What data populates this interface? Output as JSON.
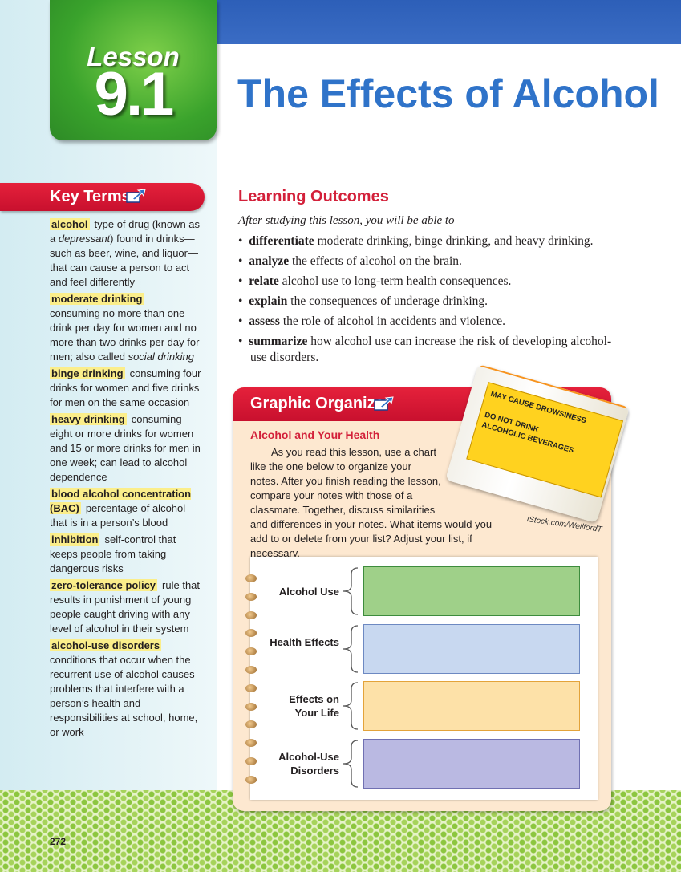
{
  "lesson": {
    "label": "Lesson",
    "number": "9.1"
  },
  "title": "The Effects of Alcohol",
  "key_terms": {
    "heading": "Key Terms",
    "terms": [
      {
        "term": "alcohol",
        "definition": [
          {
            "text": "type of drug (known as a "
          },
          {
            "text": "depressant",
            "italic": true
          },
          {
            "text": ") found in drinks—such as beer, wine, and liquor—that can cause a person to act and feel differently"
          }
        ]
      },
      {
        "term": "moderate drinking",
        "definition": [
          {
            "text": "consuming no more than one drink per day for women and no more than two drinks per day for men; also called "
          },
          {
            "text": "social drinking",
            "italic": true
          }
        ]
      },
      {
        "term": "binge drinking",
        "definition": [
          {
            "text": "consuming four drinks for women and five drinks for men on the same occasion"
          }
        ]
      },
      {
        "term": "heavy drinking",
        "definition": [
          {
            "text": "consuming eight or more drinks for women and 15 or more drinks for men in one week; can lead to alcohol dependence"
          }
        ]
      },
      {
        "term": "blood alcohol concentration (BAC)",
        "definition": [
          {
            "text": "percentage of alcohol that is in a person’s blood"
          }
        ]
      },
      {
        "term": "inhibition",
        "definition": [
          {
            "text": "self-control that keeps people from taking dangerous risks"
          }
        ]
      },
      {
        "term": "zero-tolerance policy",
        "definition": [
          {
            "text": "rule that results in punishment of young people caught driving with any level of alcohol in their system"
          }
        ]
      },
      {
        "term": "alcohol-use disorders",
        "definition": [
          {
            "text": "conditions that occur when the recurrent use of alcohol causes problems that interfere with a person’s health and responsibilities at school, home, or work"
          }
        ]
      }
    ]
  },
  "learning_outcomes": {
    "heading": "Learning Outcomes",
    "intro": "After studying this lesson, you will be able to",
    "items": [
      {
        "verb": "differentiate",
        "text": "moderate drinking, binge drinking, and heavy drinking."
      },
      {
        "verb": "analyze",
        "text": "the effects of alcohol on the brain."
      },
      {
        "verb": "relate",
        "text": "alcohol use to long-term health consequences."
      },
      {
        "verb": "explain",
        "text": "the consequences of underage drinking."
      },
      {
        "verb": "assess",
        "text": "the role of alcohol in accidents and violence."
      },
      {
        "verb": "summarize",
        "text": "how alcohol use can increase the risk of developing alcohol-use disorders."
      }
    ]
  },
  "graphic_organizer": {
    "heading": "Graphic Organizer",
    "subheading": "Alcohol and Your Health",
    "paragraph": "As you read this lesson, use a chart like the one below to organize your notes. After you finish reading the lesson, compare your notes with those of a classmate. Together, discuss similarities and differences in your notes. What items would you add to or delete from your list? Adjust your list, if necessary.",
    "photo_labels": [
      "MAY CAUSE DROWSINESS",
      "DO NOT DRINK",
      "ALCOHOLIC BEVERAGES"
    ],
    "photo_credit": "iStock.com/WellfordT",
    "rows": [
      {
        "label": "Alcohol Use",
        "fill": "#9fd089",
        "border": "#3d8c3d"
      },
      {
        "label": "Health Effects",
        "fill": "#c8d8f0",
        "border": "#6d89c2"
      },
      {
        "label": "Effects on Your Life",
        "fill": "#fde1a8",
        "border": "#e3a33a"
      },
      {
        "label": "Alcohol-Use Disorders",
        "fill": "#bab9e2",
        "border": "#7070b2"
      }
    ]
  },
  "page_number": "272"
}
